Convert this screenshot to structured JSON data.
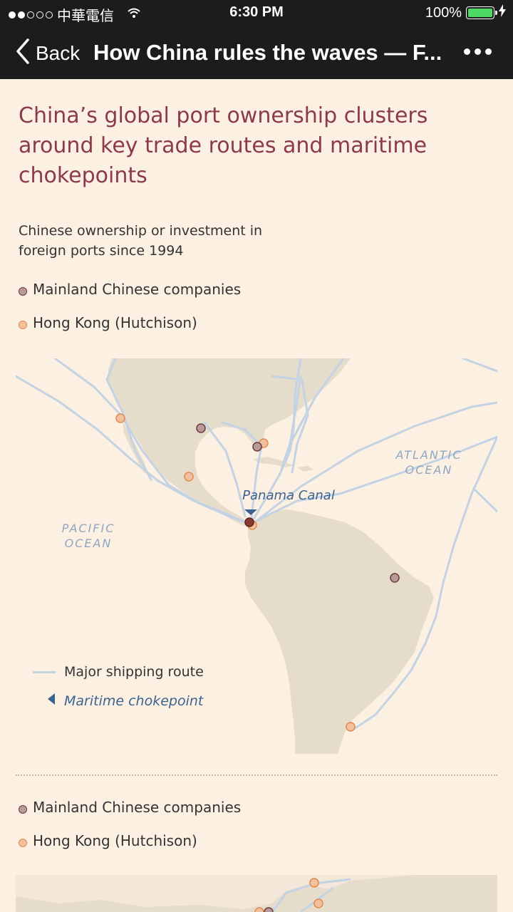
{
  "status_bar": {
    "carrier": "中華電信",
    "time": "6:30 PM",
    "battery": "100%"
  },
  "nav": {
    "back_label": "Back",
    "title": "How China rules the waves — F..."
  },
  "article": {
    "headline": "China’s global port ownership clusters around key trade routes and maritime chokepoints",
    "subtitle": "Chinese ownership or investment in foreign ports since 1994"
  },
  "legend": {
    "mainland": "Mainland Chinese companies",
    "hk": "Hong Kong (Hutchison)",
    "route": "Major shipping route",
    "chokepoint": "Maritime chokepoint"
  },
  "map": {
    "ocean_pacific_1": "PACIFIC",
    "ocean_pacific_2": "OCEAN",
    "ocean_atlantic_1": "ATLANTIC",
    "ocean_atlantic_2": "OCEAN",
    "chokepoint_label": "Panama Canal"
  },
  "legend2": {
    "mainland": "Mainland Chinese companies",
    "hk": "Hong Kong (Hutchison)"
  },
  "colors": {
    "background": "#fcf0e2",
    "land": "#e6dccc",
    "route": "#c3d3e3",
    "mainland_marker": "#6e3b3a",
    "hk_marker": "#e08a4e",
    "headline": "#8b3a4a",
    "chokepoint": "#3b6390"
  }
}
